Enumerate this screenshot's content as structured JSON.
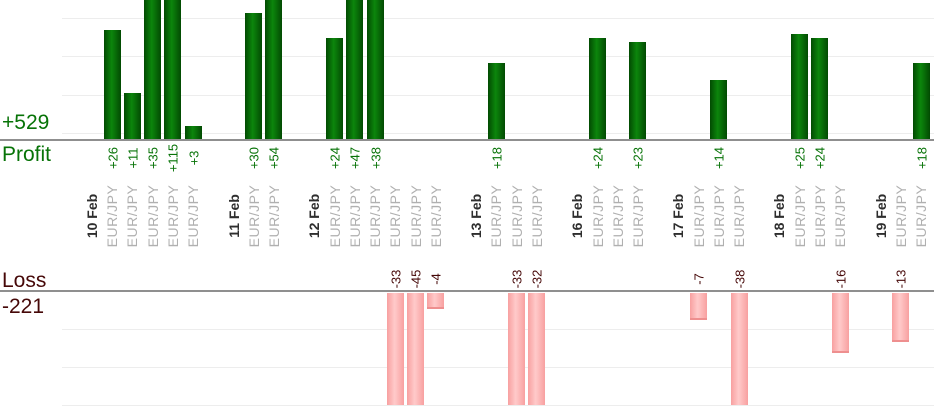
{
  "summary": {
    "profit_total": "+529",
    "profit_label": "Profit",
    "loss_label": "Loss",
    "loss_total": "-221"
  },
  "colors": {
    "profit_text": "#077307",
    "loss_text": "#460808",
    "profit_bar_edge": "#024a02",
    "profit_bar_mid": "#0c860c",
    "loss_bar_edge": "#f8a0a0",
    "loss_bar_mid": "#ffcaca",
    "loss_bar_border": "#ee8f8f",
    "date_text": "#2e2e2e",
    "symbol_text": "#b0b0b0",
    "gridline": "#ededed",
    "axis_line": "#8f8f8f"
  },
  "chart_data": {
    "type": "bar",
    "symbol": "EUR/JPY",
    "profit_total": 529,
    "loss_total": -221,
    "groups": [
      {
        "date": "10 Feb",
        "trades": [
          26,
          11,
          35,
          115,
          3
        ]
      },
      {
        "date": "11 Feb",
        "trades": [
          30,
          54
        ]
      },
      {
        "date": "12 Feb",
        "trades": [
          24,
          47,
          38,
          -33,
          -45,
          -4
        ]
      },
      {
        "date": "13 Feb",
        "trades": [
          18,
          -33,
          -32
        ]
      },
      {
        "date": "16 Feb",
        "trades": [
          24,
          0,
          23
        ]
      },
      {
        "date": "17 Feb",
        "trades": [
          -7,
          14,
          -38
        ]
      },
      {
        "date": "18 Feb",
        "trades": [
          25,
          24,
          -16
        ]
      },
      {
        "date": "19 Feb",
        "trades": [
          -13,
          18
        ]
      }
    ]
  }
}
